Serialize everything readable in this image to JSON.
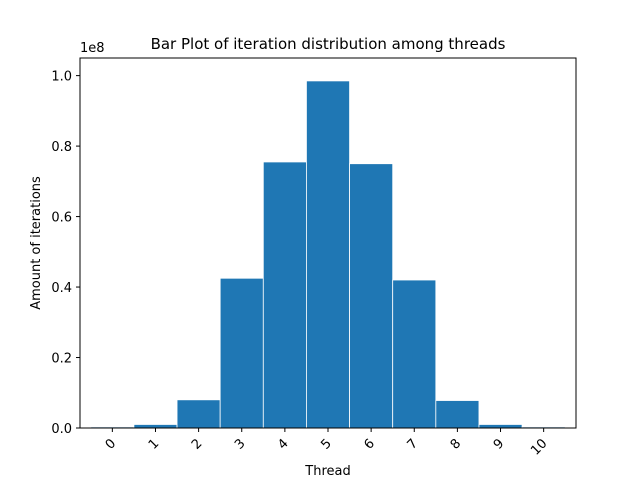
{
  "chart_data": {
    "type": "bar",
    "title": "Bar Plot of iteration distribution among threads",
    "xlabel": "Thread",
    "ylabel": "Amount of iterations",
    "y_offset_label": "1e8",
    "y_scale": 100000000,
    "categories": [
      "0",
      "1",
      "2",
      "3",
      "4",
      "5",
      "6",
      "7",
      "8",
      "9",
      "10"
    ],
    "values": [
      300000,
      1000000,
      8000000,
      42500000,
      75500000,
      98500000,
      75000000,
      42000000,
      7800000,
      1000000,
      300000
    ],
    "ylim": [
      0,
      105000000
    ],
    "yticks": [
      0,
      20000000,
      40000000,
      60000000,
      80000000,
      100000000
    ],
    "ytick_labels": [
      "0.0",
      "0.2",
      "0.4",
      "0.6",
      "0.8",
      "1.0"
    ],
    "xlim": [
      -0.75,
      10.75
    ],
    "bar_color": "#1f77b4",
    "bar_edge_color": "#ffffff",
    "grid": false,
    "x_tick_rotation": 45
  }
}
